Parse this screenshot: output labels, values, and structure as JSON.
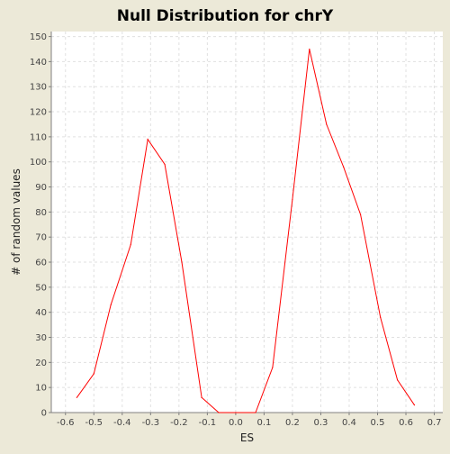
{
  "chart_data": {
    "type": "line",
    "title": "Null Distribution for chrY",
    "xlabel": "ES",
    "ylabel": "# of random values",
    "xlim": [
      -0.65,
      0.73
    ],
    "ylim": [
      0,
      152
    ],
    "x_ticks": [
      -0.6,
      -0.5,
      -0.4,
      -0.3,
      -0.2,
      -0.1,
      0.0,
      0.1,
      0.2,
      0.3,
      0.4,
      0.5,
      0.6,
      0.7
    ],
    "x_tick_labels": [
      "-0.6",
      "-0.5",
      "-0.4",
      "-0.3",
      "-0.2",
      "-0.1",
      "0.0",
      "0.1",
      "0.2",
      "0.3",
      "0.4",
      "0.5",
      "0.6",
      "0.7"
    ],
    "y_ticks": [
      0,
      10,
      20,
      30,
      40,
      50,
      60,
      70,
      80,
      90,
      100,
      110,
      120,
      130,
      140,
      150
    ],
    "y_tick_labels": [
      "0",
      "10",
      "20",
      "30",
      "40",
      "50",
      "60",
      "70",
      "80",
      "90",
      "100",
      "110",
      "120",
      "130",
      "140",
      "150"
    ],
    "grid": true,
    "series": [
      {
        "color": "#ff0000",
        "x": [
          -0.56,
          -0.5,
          -0.44,
          -0.37,
          -0.31,
          -0.25,
          -0.19,
          -0.12,
          -0.06,
          0.0,
          0.07,
          0.13,
          0.2,
          0.26,
          0.32,
          0.38,
          0.44,
          0.51,
          0.57,
          0.63
        ],
        "y": [
          6,
          15.5,
          43,
          67,
          109,
          99,
          60,
          6,
          0,
          0,
          0,
          18,
          85,
          145,
          115,
          98,
          79,
          38,
          13,
          3
        ]
      }
    ]
  },
  "colors": {
    "background": "#ece9d8",
    "plot_background": "#ffffff",
    "grid": "#e0e0e0",
    "axis": "#808080",
    "line": "#ff0000"
  }
}
